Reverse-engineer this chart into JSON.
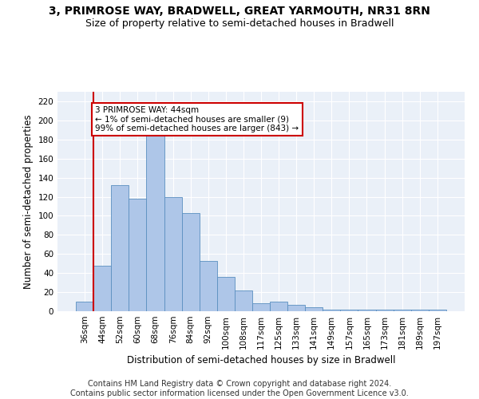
{
  "title1": "3, PRIMROSE WAY, BRADWELL, GREAT YARMOUTH, NR31 8RN",
  "title2": "Size of property relative to semi-detached houses in Bradwell",
  "xlabel": "Distribution of semi-detached houses by size in Bradwell",
  "ylabel": "Number of semi-detached properties",
  "categories": [
    "36sqm",
    "44sqm",
    "52sqm",
    "60sqm",
    "68sqm",
    "76sqm",
    "84sqm",
    "92sqm",
    "100sqm",
    "108sqm",
    "117sqm",
    "125sqm",
    "133sqm",
    "141sqm",
    "149sqm",
    "157sqm",
    "165sqm",
    "173sqm",
    "181sqm",
    "189sqm",
    "197sqm"
  ],
  "values": [
    10,
    48,
    132,
    118,
    184,
    120,
    103,
    53,
    36,
    22,
    8,
    10,
    7,
    4,
    2,
    2,
    2,
    2,
    2,
    2,
    2
  ],
  "bar_color": "#aec6e8",
  "bar_edge_color": "#5a8fc0",
  "highlight_color": "#cc0000",
  "annotation_text": "3 PRIMROSE WAY: 44sqm\n← 1% of semi-detached houses are smaller (9)\n99% of semi-detached houses are larger (843) →",
  "annotation_box_color": "#ffffff",
  "annotation_box_edge": "#cc0000",
  "vline_x_index": 1,
  "ylim": [
    0,
    230
  ],
  "yticks": [
    0,
    20,
    40,
    60,
    80,
    100,
    120,
    140,
    160,
    180,
    200,
    220
  ],
  "footer1": "Contains HM Land Registry data © Crown copyright and database right 2024.",
  "footer2": "Contains public sector information licensed under the Open Government Licence v3.0.",
  "bg_color": "#eaf0f8",
  "grid_color": "#ffffff",
  "title_fontsize": 10,
  "subtitle_fontsize": 9,
  "axis_label_fontsize": 8.5,
  "tick_fontsize": 7.5,
  "footer_fontsize": 7
}
